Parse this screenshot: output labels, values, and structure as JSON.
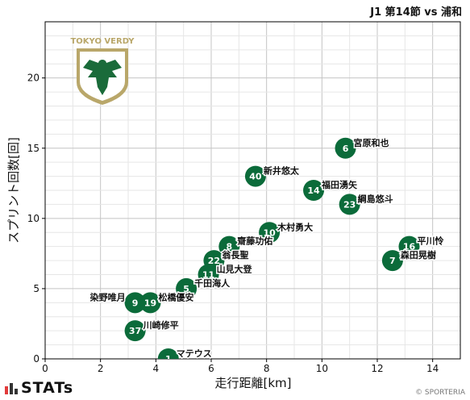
{
  "header": {
    "match": "J1 第14節 vs 浦和"
  },
  "logo": {
    "text": "TOKYO VERDY",
    "colors": {
      "shield": "#b9a76a",
      "bird": "#1a6b3a"
    }
  },
  "brand": {
    "name": "STATs",
    "bar_colors": [
      "#e23b3b",
      "#333333",
      "#333333"
    ]
  },
  "credit": "© SPORTERIA",
  "colors": {
    "marker": "#0b6b3a",
    "marker_text": "#ffffff",
    "grid": "#cccccc",
    "axis": "#000000"
  },
  "chart_data": {
    "type": "scatter",
    "xlabel": "走行距離[km]",
    "ylabel": "スプリント回数[回]",
    "xlim": [
      0,
      15
    ],
    "ylim": [
      0,
      24
    ],
    "xticks": [
      0,
      2,
      4,
      6,
      8,
      10,
      12,
      14
    ],
    "yticks": [
      0,
      5,
      10,
      15,
      20
    ],
    "grid": true,
    "points": [
      {
        "number": "6",
        "name": "宮原和也",
        "x": 10.85,
        "y": 15,
        "label_side": "right"
      },
      {
        "number": "40",
        "name": "新井悠太",
        "x": 7.6,
        "y": 13,
        "label_side": "right"
      },
      {
        "number": "14",
        "name": "福田湧矢",
        "x": 9.7,
        "y": 12,
        "label_side": "right"
      },
      {
        "number": "23",
        "name": "綱島悠斗",
        "x": 11.0,
        "y": 11,
        "label_side": "right"
      },
      {
        "number": "10",
        "name": "木村勇大",
        "x": 8.1,
        "y": 9,
        "label_side": "right"
      },
      {
        "number": "8",
        "name": "齋藤功佑",
        "x": 6.65,
        "y": 8,
        "label_side": "right"
      },
      {
        "number": "22",
        "name": "翁長聖",
        "x": 6.1,
        "y": 7,
        "label_side": "right"
      },
      {
        "number": "11",
        "name": "山見大登",
        "x": 5.9,
        "y": 6,
        "label_side": "right"
      },
      {
        "number": "5",
        "name": "千田海人",
        "x": 5.1,
        "y": 5,
        "label_side": "right"
      },
      {
        "number": "16",
        "name": "平川怜",
        "x": 13.15,
        "y": 8,
        "label_side": "right"
      },
      {
        "number": "7",
        "name": "森田晃樹",
        "x": 12.55,
        "y": 7,
        "label_side": "right"
      },
      {
        "number": "9",
        "name": "染野唯月",
        "x": 3.25,
        "y": 4,
        "label_side": "left"
      },
      {
        "number": "19",
        "name": "松橋優安",
        "x": 3.8,
        "y": 4,
        "label_side": "right"
      },
      {
        "number": "37",
        "name": "川崎修平",
        "x": 3.25,
        "y": 2,
        "label_side": "right"
      },
      {
        "number": "1",
        "name": "マテウス",
        "x": 4.45,
        "y": 0,
        "label_side": "right"
      }
    ]
  }
}
